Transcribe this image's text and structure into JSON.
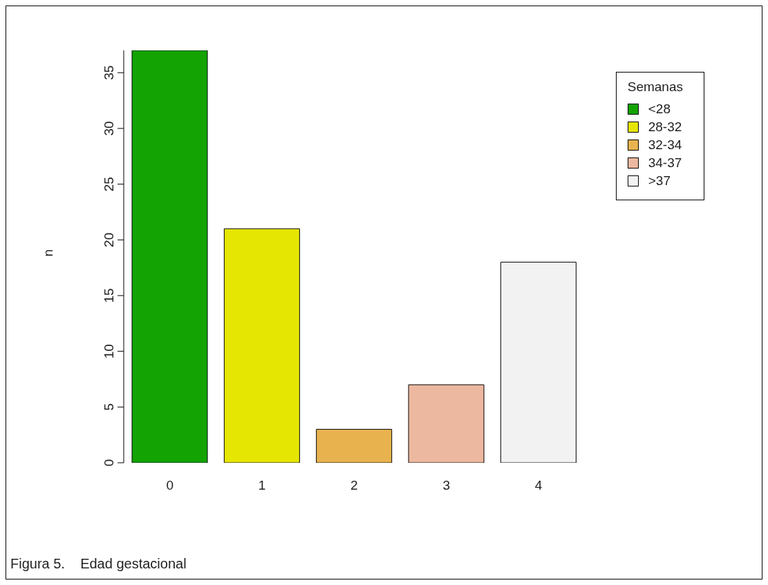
{
  "chart_data": {
    "type": "bar",
    "ylabel": "n",
    "legend_title": "Semanas",
    "categories": [
      "0",
      "1",
      "2",
      "3",
      "4"
    ],
    "stacked": true,
    "series": [
      {
        "name": "<28",
        "color": "#13a302",
        "values": [
          37,
          null,
          null,
          null,
          null
        ]
      },
      {
        "name": "28-32",
        "color": "#e6e603",
        "values": [
          null,
          21,
          null,
          null,
          null
        ]
      },
      {
        "name": "32-34",
        "color": "#e8b34f",
        "values": [
          null,
          null,
          3,
          null,
          null
        ]
      },
      {
        "name": "34-37",
        "color": "#edb8a0",
        "values": [
          null,
          null,
          null,
          7,
          null
        ]
      },
      {
        "name": ">37",
        "color": "#f2f2f2",
        "values": [
          null,
          null,
          null,
          null,
          18
        ]
      }
    ],
    "ylim": [
      0,
      37
    ],
    "yticks": [
      0,
      5,
      10,
      15,
      20,
      25,
      30,
      35
    ],
    "grid": false,
    "legend": "top right",
    "annotations": [
      "Figura 5.    Edad gestacional"
    ]
  }
}
